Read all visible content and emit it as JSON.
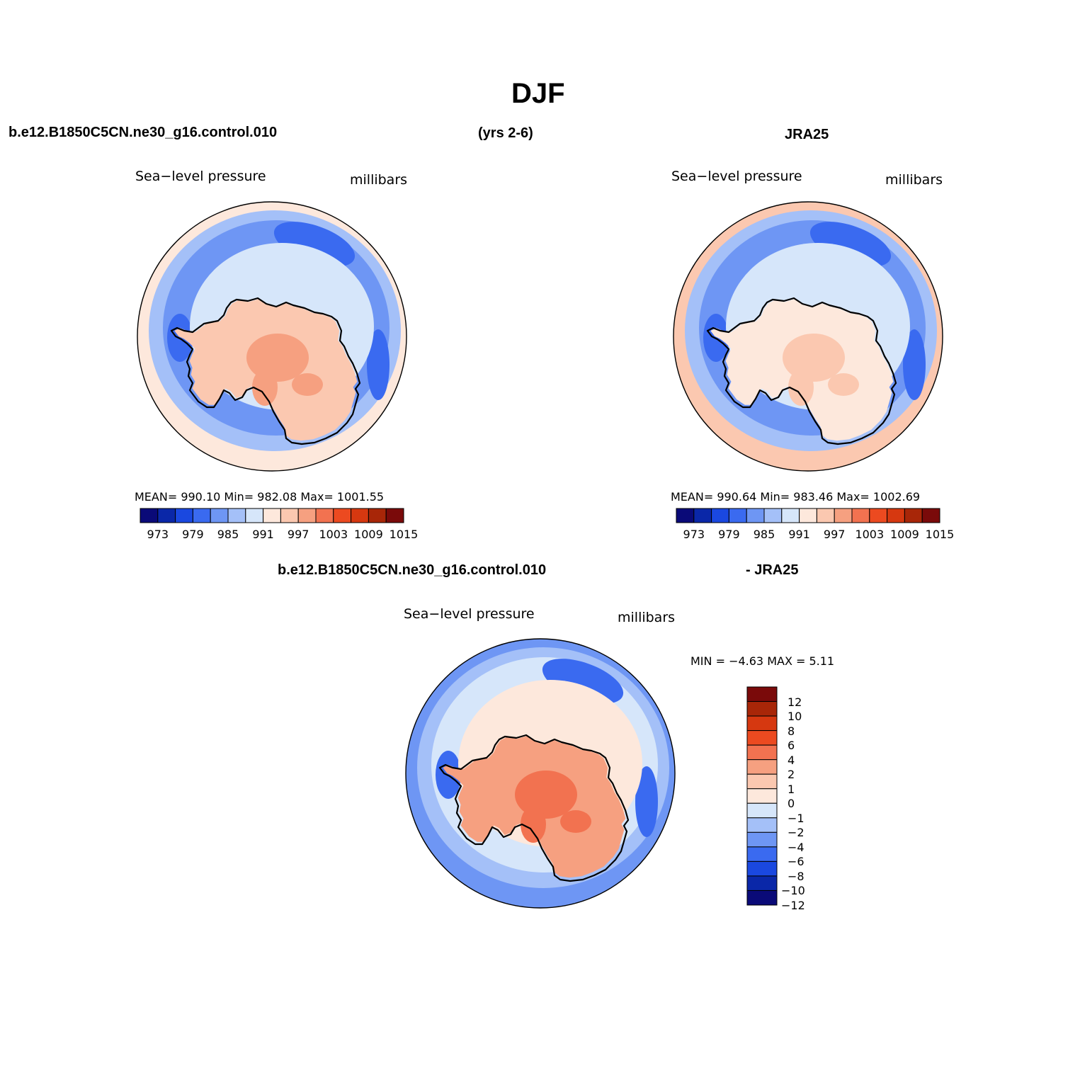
{
  "figure": {
    "title": "DJF",
    "case_name": "b.e12.B1850C5CN.ne30_g16.control.010",
    "years": "(yrs 2-6)",
    "obs_name": "JRA25",
    "diff_case": "b.e12.B1850C5CN.ne30_g16.control.010",
    "diff_obs": "- JRA25"
  },
  "colors": {
    "abs_scale": [
      "#0a0a78",
      "#0a27a8",
      "#1a48e0",
      "#3a6af0",
      "#6e96f4",
      "#a4c0f8",
      "#d6e6fa",
      "#fde8dc",
      "#fbc8b0",
      "#f6a080",
      "#f27250",
      "#ec4a20",
      "#d63810",
      "#a82608",
      "#7a0a0a"
    ],
    "diff_scale": [
      "#0a0a78",
      "#0a27a8",
      "#1a48e0",
      "#3a6af0",
      "#6e96f4",
      "#a4c0f8",
      "#d6e6fa",
      "#fde8dc",
      "#fbc8b0",
      "#f6a080",
      "#f27250",
      "#ec4a20",
      "#d63810",
      "#a82608",
      "#7a0a0a"
    ]
  },
  "panels": [
    {
      "id": "model",
      "variable": "Sea−level pressure",
      "units": "millibars",
      "stats": "MEAN=  990.10    Min=  982.08    Max=  1001.55",
      "colorbar_ticks": [
        "973",
        "979",
        "985",
        "991",
        "997",
        "1003",
        "1009",
        "1015"
      ],
      "map_fields": {
        "outer_ring": "#fde8dc",
        "ocean_band": "#a4c0f8",
        "storm_track": "#6e96f4",
        "lows": "#3a6af0",
        "coast_band": "#d6e6fa",
        "interior": "#fbc8b0",
        "plateau": "#f6a080"
      }
    },
    {
      "id": "obs",
      "variable": "Sea−level pressure",
      "units": "millibars",
      "stats": "MEAN=  990.64    Min=  983.46    Max=  1002.69",
      "colorbar_ticks": [
        "973",
        "979",
        "985",
        "991",
        "997",
        "1003",
        "1009",
        "1015"
      ],
      "map_fields": {
        "outer_ring": "#fbc8b0",
        "ocean_band": "#a4c0f8",
        "storm_track": "#6e96f4",
        "lows": "#3a6af0",
        "coast_band": "#d6e6fa",
        "interior": "#fde8dc",
        "plateau": "#fbc8b0"
      }
    },
    {
      "id": "diff",
      "variable": "Sea−level pressure",
      "units": "millibars",
      "stats": "MIN =   −4.63  MAX =     5.11",
      "colorbar_ticks": [
        "12",
        "10",
        "8",
        "6",
        "4",
        "2",
        "1",
        "0",
        "−1",
        "−2",
        "−4",
        "−6",
        "−8",
        "−10",
        "−12"
      ],
      "map_fields": {
        "outer_ring": "#6e96f4",
        "ocean_band": "#a4c0f8",
        "storm_track": "#d6e6fa",
        "lows": "#3a6af0",
        "coast_band": "#fde8dc",
        "interior": "#f6a080",
        "plateau": "#f27250"
      }
    }
  ]
}
